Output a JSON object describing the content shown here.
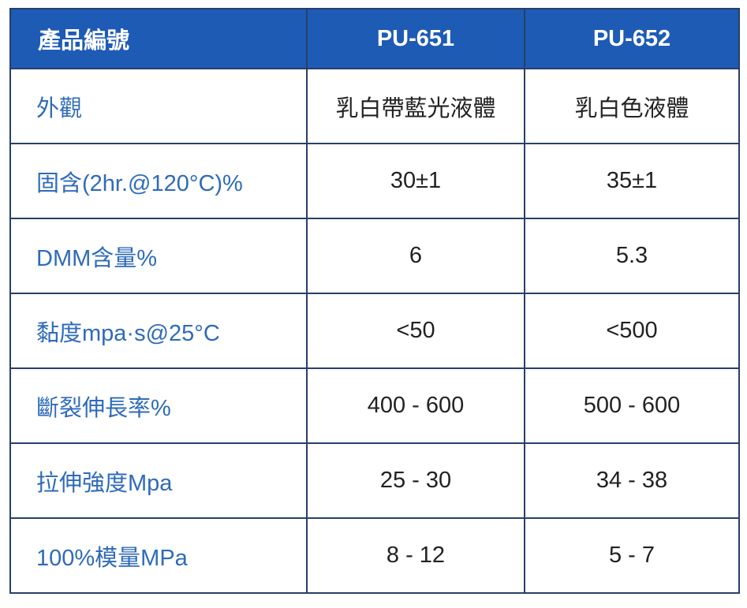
{
  "table": {
    "header": {
      "label": "產品編號",
      "products": [
        "PU-651",
        "PU-652"
      ]
    },
    "rows": [
      {
        "property": "外觀",
        "values": [
          "乳白帶藍光液體",
          "乳白色液體"
        ]
      },
      {
        "property": "固含(2hr.@120°C)%",
        "values": [
          "30±1",
          "35±1"
        ]
      },
      {
        "property": "DMM含量%",
        "values": [
          "6",
          "5.3"
        ]
      },
      {
        "property": "黏度mpa·s@25°C",
        "values": [
          "<50",
          "<500"
        ]
      },
      {
        "property": "斷裂伸長率%",
        "values": [
          "400 - 600",
          "500 - 600"
        ]
      },
      {
        "property": "拉伸強度Mpa",
        "values": [
          "25 - 30",
          "34 - 38"
        ]
      },
      {
        "property": "100%模量MPa",
        "values": [
          "8 - 12",
          "5 - 7"
        ]
      }
    ]
  },
  "colors": {
    "header_background": "#1d5bb5",
    "header_text": "#ffffff",
    "property_text": "#2f6bb8",
    "value_text": "#222222",
    "border": "#2a3e6b"
  }
}
